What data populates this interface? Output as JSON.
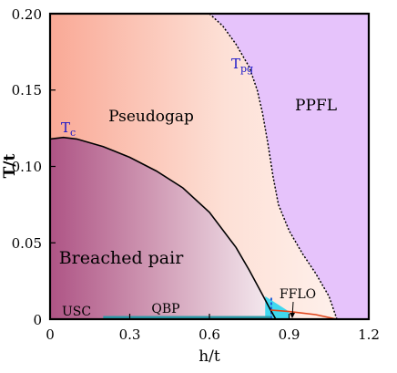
{
  "chart_data": {
    "type": "phase-diagram",
    "xlabel": "h/t",
    "ylabel": "T/t",
    "xlim": [
      0,
      1.2
    ],
    "ylim": [
      0,
      0.2
    ],
    "x_ticks": [
      0,
      0.3,
      0.6,
      0.9,
      1.2
    ],
    "x_tick_labels": [
      "0",
      "0.3",
      "0.6",
      "0.9",
      "1.2"
    ],
    "y_ticks": [
      0,
      0.05,
      0.1,
      0.15,
      0.2
    ],
    "y_tick_labels": [
      "0",
      "0.05",
      "0.10",
      "0.15",
      "0.20"
    ],
    "curves": {
      "Tc": [
        [
          0,
          0.118
        ],
        [
          0.05,
          0.119
        ],
        [
          0.1,
          0.118
        ],
        [
          0.2,
          0.113
        ],
        [
          0.3,
          0.106
        ],
        [
          0.4,
          0.097
        ],
        [
          0.5,
          0.086
        ],
        [
          0.6,
          0.07
        ],
        [
          0.7,
          0.047
        ],
        [
          0.75,
          0.032
        ],
        [
          0.8,
          0.016
        ],
        [
          0.83,
          0.006
        ],
        [
          0.85,
          0.0
        ]
      ],
      "Tpg": [
        [
          0.6,
          0.2
        ],
        [
          0.65,
          0.192
        ],
        [
          0.7,
          0.18
        ],
        [
          0.75,
          0.165
        ],
        [
          0.78,
          0.15
        ],
        [
          0.8,
          0.135
        ],
        [
          0.82,
          0.115
        ],
        [
          0.84,
          0.093
        ],
        [
          0.86,
          0.075
        ],
        [
          0.9,
          0.058
        ],
        [
          0.95,
          0.043
        ],
        [
          1.0,
          0.03
        ],
        [
          1.05,
          0.015
        ],
        [
          1.08,
          0.0
        ]
      ],
      "FFLO_edge": [
        [
          0.83,
          0.006
        ],
        [
          0.9,
          0.005
        ],
        [
          1.0,
          0.003
        ],
        [
          1.08,
          0.0
        ]
      ]
    },
    "regions": {
      "breached_pair": "Breached pair",
      "pseudogap": "Pseudogap",
      "ppfl": "PPFL",
      "usc": "USC",
      "qbp": "QBP",
      "fflo": "FFLO"
    },
    "curve_labels": {
      "tc_main": "T",
      "tc_sub": "c",
      "tpg_main": "T",
      "tpg_sub": "pg"
    },
    "qbp_segment": {
      "x_start": 0.2,
      "x_end": 0.83
    },
    "fflo_x_range": [
      0.81,
      0.9
    ],
    "colors": {
      "breached_dark": "#b05a8a",
      "pseudogap_light": "#f9b8a8",
      "ppfl": "#e6c3fb",
      "fflo": "#40d8ef",
      "qbp": "#2a9aa8",
      "tpg_label": "#1a16c9",
      "edge": "#e0441a"
    }
  }
}
